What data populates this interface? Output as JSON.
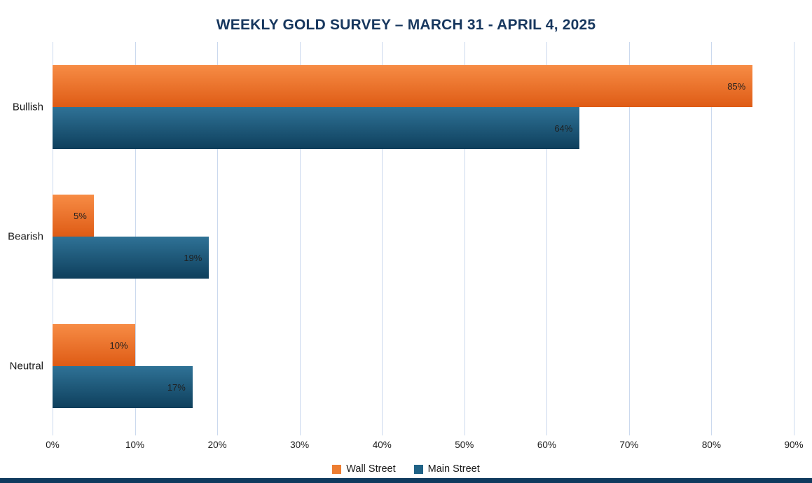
{
  "chart_data": {
    "type": "bar",
    "orientation": "horizontal",
    "title": "WEEKLY GOLD SURVEY – MARCH 31 - APRIL 4, 2025",
    "categories": [
      "Bullish",
      "Bearish",
      "Neutral"
    ],
    "series": [
      {
        "name": "Wall Street",
        "color": "#ED7D31",
        "gradient_top": "#F78C45",
        "gradient_bottom": "#DE5B15",
        "values": [
          85,
          5,
          10
        ]
      },
      {
        "name": "Main Street",
        "color": "#1F6286",
        "gradient_top": "#2F7296",
        "gradient_bottom": "#0E3F5C",
        "values": [
          64,
          19,
          17
        ]
      }
    ],
    "value_suffix": "%",
    "x_ticks": [
      "0%",
      "10%",
      "20%",
      "30%",
      "40%",
      "50%",
      "60%",
      "70%",
      "80%",
      "90%"
    ],
    "x_tick_values": [
      0,
      10,
      20,
      30,
      40,
      50,
      60,
      70,
      80,
      90
    ],
    "xlim": [
      0,
      90
    ],
    "grid": true,
    "legend_position": "bottom"
  },
  "colors": {
    "title": "#17375E",
    "gridline": "#CBD9EE",
    "axis_text": "#1A1A1A",
    "footer_strip": "#0F3A5E",
    "background": "#FFFFFF"
  }
}
